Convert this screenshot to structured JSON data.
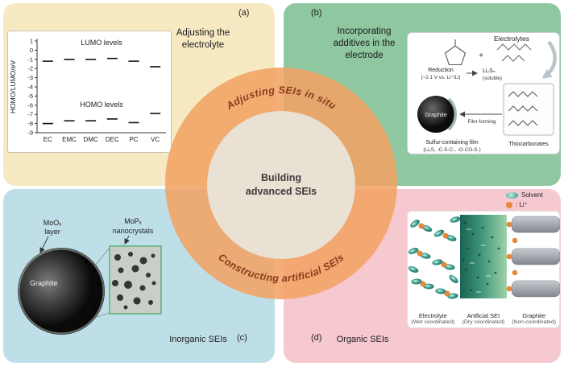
{
  "colors": {
    "panel_a_bg": "#f7e9c2",
    "panel_b_bg": "#8ec7a0",
    "panel_c_bg": "#bedfe7",
    "panel_d_bg": "#f6c8d0",
    "ring": "#f2a364",
    "inner_circle": "#e9e1d3",
    "arc_text": "#8a3a1c",
    "solvent": "#2d9486",
    "li_ion": "#e8893a"
  },
  "center": {
    "arc_top": "Adjusting SEIs in situ",
    "arc_bottom": "Constructing artificial SEIs",
    "title_line1": "Building",
    "title_line2": "advanced SEIs"
  },
  "panel_a": {
    "label": "(a)",
    "title_line1": "Adjusting the",
    "title_line2": "electrolyte"
  },
  "panel_b": {
    "label": "(b)",
    "title_line1": "Incorporating",
    "title_line2": "additives in the",
    "title_line3": "electrode",
    "diagram": {
      "electrolytes_label": "Electrolytes",
      "plus_sign": "+",
      "reduction_line1": "Reduction",
      "reduction_line2": "(~2.1 V vs. Li⁺/Li)",
      "soluble_line1": "Li₂Sₙ",
      "soluble_line2": "(soluble)",
      "graphite_label": "Graphite",
      "film_forming_label": "Film-forming",
      "film_line1": "Sulfur-containing film",
      "film_line2": "(Li₂S, -C-S-C-, -O-CO-S-)",
      "thiocarbonates_label": "Thiocarbonates"
    }
  },
  "panel_c": {
    "label": "(c)",
    "category_label": "Inorganic SEIs",
    "diagram": {
      "coating_line1": "MoOₓ",
      "coating_line2": "layer",
      "crystals_line1": "MoPₓ",
      "crystals_line2": "nanocrystals",
      "graphite_label": "Graphite"
    }
  },
  "panel_d": {
    "label": "(d)",
    "category_label": "Organic SEIs",
    "legend": [
      {
        "icon": "solvent-ellipse",
        "label": "Solvent"
      },
      {
        "icon": "li-ion-dot",
        "label": ": Li⁺"
      }
    ],
    "regions": [
      {
        "name": "Electrolyte",
        "sub": "(Wet coordinated)"
      },
      {
        "name": "Artificial SEI",
        "sub": "(Dry coordinated)"
      },
      {
        "name": "Graphite",
        "sub": "(Non-coordinated)"
      }
    ]
  },
  "chart_data": {
    "type": "scatter",
    "title": "",
    "ylabel": "HOMO/LUMO/eV",
    "ylim": [
      -9,
      1
    ],
    "yticks": [
      1,
      0,
      -1,
      -2,
      -3,
      -4,
      -5,
      -6,
      -7,
      -8,
      -9
    ],
    "categories": [
      "EC",
      "EMC",
      "DMC",
      "DEC",
      "PC",
      "VC"
    ],
    "marker": "dash",
    "grid": false,
    "legend_position": "none",
    "series": [
      {
        "name": "LUMO levels",
        "values": [
          -1.2,
          -1.0,
          -1.0,
          -0.9,
          -1.2,
          -1.8
        ]
      },
      {
        "name": "HOMO levels",
        "values": [
          -8.0,
          -7.7,
          -7.7,
          -7.5,
          -7.9,
          -6.9
        ]
      }
    ]
  }
}
